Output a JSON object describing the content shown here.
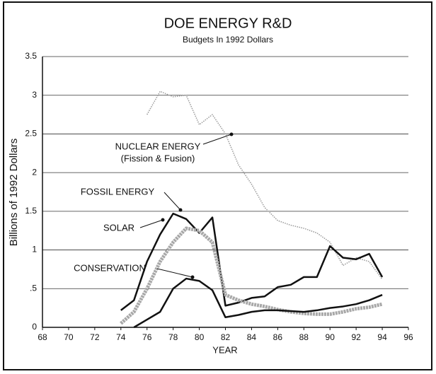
{
  "chart_data": {
    "type": "line",
    "title": "DOE ENERGY R&D",
    "subtitle": "Budgets In 1992 Dollars",
    "y_label": "Billions of 1992 Dollars",
    "x_label": "YEAR",
    "x": [
      74,
      75,
      76,
      77,
      78,
      79,
      80,
      81,
      82,
      83,
      84,
      85,
      86,
      87,
      88,
      89,
      90,
      91,
      92,
      93,
      94
    ],
    "series": [
      {
        "name": "NUCLEAR ENERGY",
        "sublabel": "(Fission & Fusion)",
        "color": "#9a9a9a",
        "style": "dotted",
        "values": [
          null,
          null,
          2.75,
          3.05,
          2.98,
          3.0,
          2.62,
          2.75,
          2.5,
          2.1,
          1.85,
          1.55,
          1.38,
          1.32,
          1.28,
          1.22,
          1.1,
          0.8,
          0.9,
          0.85,
          0.62
        ]
      },
      {
        "name": "FOSSIL ENERGY",
        "color": "#111111",
        "style": "solid",
        "values": [
          0.22,
          0.35,
          0.85,
          1.2,
          1.47,
          1.4,
          1.22,
          1.42,
          0.28,
          0.32,
          0.38,
          0.4,
          0.52,
          0.55,
          0.65,
          0.65,
          1.05,
          0.9,
          0.88,
          0.95,
          0.65
        ]
      },
      {
        "name": "SOLAR",
        "color": "#a8a8a8",
        "style": "thick",
        "values": [
          0.05,
          0.2,
          0.5,
          0.85,
          1.1,
          1.28,
          1.25,
          1.1,
          0.42,
          0.35,
          0.3,
          0.27,
          0.23,
          0.2,
          0.18,
          0.17,
          0.17,
          0.2,
          0.24,
          0.26,
          0.3
        ]
      },
      {
        "name": "CONSERVATION",
        "color": "#111111",
        "style": "solid",
        "values": [
          null,
          0.0,
          0.1,
          0.2,
          0.5,
          0.63,
          0.6,
          0.48,
          0.13,
          0.16,
          0.2,
          0.22,
          0.22,
          0.21,
          0.2,
          0.22,
          0.25,
          0.27,
          0.3,
          0.35,
          0.42
        ]
      }
    ],
    "xlim": [
      68,
      96
    ],
    "ylim": [
      0,
      3.5
    ],
    "xticks": [
      68,
      70,
      72,
      74,
      76,
      78,
      80,
      82,
      84,
      86,
      88,
      90,
      92,
      94,
      96
    ],
    "yticks": [
      0,
      {
        "value": 0.5,
        "label": ".5"
      },
      1,
      1.5,
      2,
      2.5,
      3,
      3.5
    ],
    "grid": true
  }
}
